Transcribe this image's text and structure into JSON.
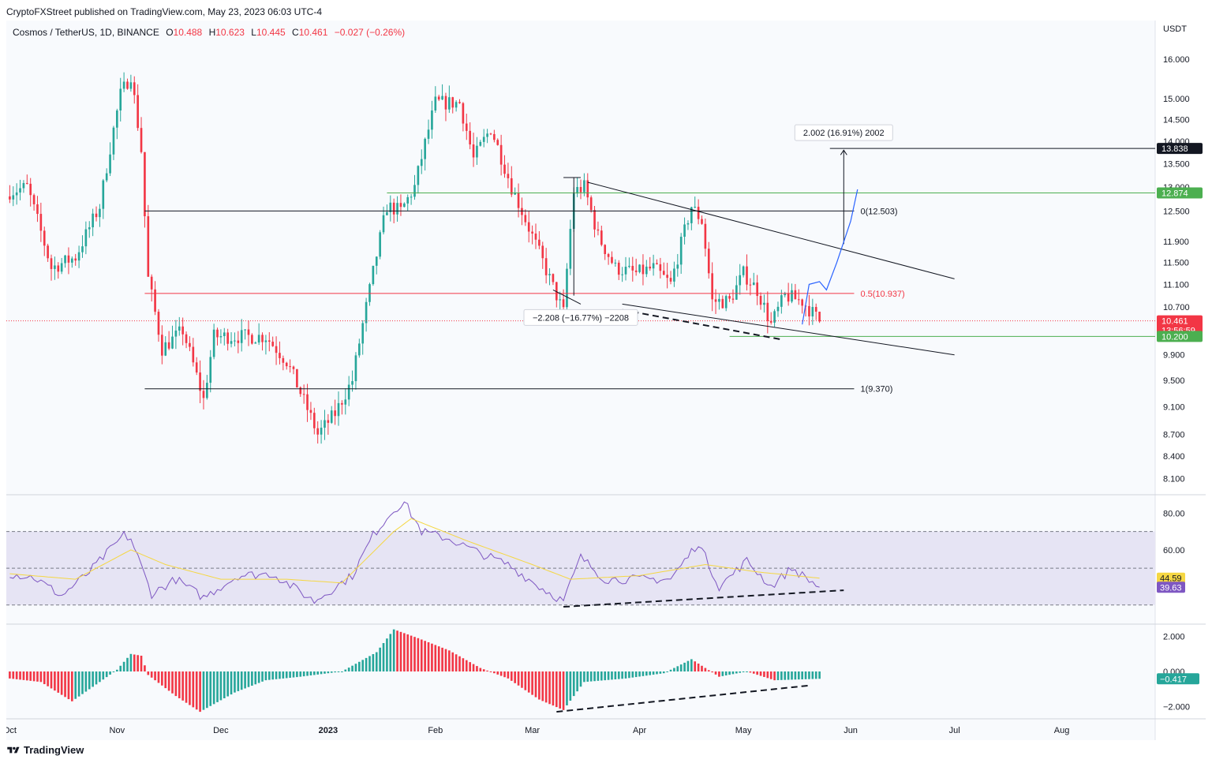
{
  "publisher_text": "CryptoFXStreet published on TradingView.com, May 23, 2023 06:03 UTC-4",
  "symbol": {
    "name": "Cosmos / TetherUS, 1D, BINANCE",
    "o_label": "O",
    "o": "10.488",
    "h_label": "H",
    "h": "10.623",
    "l_label": "L",
    "l": "10.445",
    "c_label": "C",
    "c": "10.461",
    "change": "−0.027 (−0.26%)"
  },
  "currency_label": "USDT",
  "footer_brand": "TradingView",
  "colors": {
    "up": "#26a69a",
    "down": "#f23645",
    "rsi": "#7e57c2",
    "rsi_ma": "#f5d742",
    "fib_mid": "#f23645",
    "green_level": "#4caf50",
    "projection": "#2962ff"
  },
  "chart_data": [
    {
      "type": "candlestick",
      "title": "Cosmos / TetherUS, 1D, BINANCE",
      "y_scale": "log",
      "ylim": [
        7.9,
        16.6
      ],
      "x_range": [
        "2022-09-30",
        "2023-08-28"
      ],
      "x_ticks": [
        {
          "date": "2022-10-01",
          "label": "Oct"
        },
        {
          "date": "2022-11-01",
          "label": "Nov"
        },
        {
          "date": "2022-12-01",
          "label": "Dec"
        },
        {
          "date": "2023-01-01",
          "label": "2023"
        },
        {
          "date": "2023-02-01",
          "label": "Feb"
        },
        {
          "date": "2023-03-01",
          "label": "Mar"
        },
        {
          "date": "2023-04-01",
          "label": "Apr"
        },
        {
          "date": "2023-05-01",
          "label": "May"
        },
        {
          "date": "2023-06-01",
          "label": "Jun"
        },
        {
          "date": "2023-07-01",
          "label": "Jul"
        },
        {
          "date": "2023-08-01",
          "label": "Aug"
        }
      ],
      "y_ticks": [
        "16.000",
        "15.000",
        "14.500",
        "14.000",
        "13.500",
        "13.000",
        "12.500",
        "11.900",
        "11.500",
        "11.100",
        "10.700",
        "9.900",
        "9.500",
        "9.100",
        "8.700",
        "8.400",
        "8.100"
      ],
      "key_points": [
        {
          "date": "2022-10-01",
          "close": 12.9
        },
        {
          "date": "2022-10-06",
          "close": 13.0
        },
        {
          "date": "2022-10-13",
          "close": 11.4
        },
        {
          "date": "2022-10-20",
          "close": 11.6
        },
        {
          "date": "2022-10-27",
          "close": 12.6
        },
        {
          "date": "2022-11-02",
          "close": 15.1
        },
        {
          "date": "2022-11-05",
          "close": 15.6
        },
        {
          "date": "2022-11-08",
          "close": 13.8
        },
        {
          "date": "2022-11-09",
          "close": 12.4
        },
        {
          "date": "2022-11-10",
          "close": 11.2
        },
        {
          "date": "2022-11-14",
          "close": 10.0
        },
        {
          "date": "2022-11-20",
          "close": 10.3
        },
        {
          "date": "2022-11-26",
          "close": 9.2
        },
        {
          "date": "2022-11-29",
          "close": 10.2
        },
        {
          "date": "2022-12-05",
          "close": 10.2
        },
        {
          "date": "2022-12-14",
          "close": 10.2
        },
        {
          "date": "2022-12-20",
          "close": 9.8
        },
        {
          "date": "2022-12-29",
          "close": 8.7
        },
        {
          "date": "2023-01-03",
          "close": 9.0
        },
        {
          "date": "2023-01-08",
          "close": 9.5
        },
        {
          "date": "2023-01-13",
          "close": 11.0
        },
        {
          "date": "2023-01-18",
          "close": 12.6
        },
        {
          "date": "2023-01-22",
          "close": 12.5
        },
        {
          "date": "2023-01-26",
          "close": 13.0
        },
        {
          "date": "2023-02-01",
          "close": 14.9
        },
        {
          "date": "2023-02-08",
          "close": 14.9
        },
        {
          "date": "2023-02-12",
          "close": 13.6
        },
        {
          "date": "2023-02-17",
          "close": 14.3
        },
        {
          "date": "2023-02-23",
          "close": 13.0
        },
        {
          "date": "2023-03-01",
          "close": 12.0
        },
        {
          "date": "2023-03-06",
          "close": 11.2
        },
        {
          "date": "2023-03-10",
          "close": 10.6
        },
        {
          "date": "2023-03-13",
          "close": 12.9
        },
        {
          "date": "2023-03-16",
          "close": 13.0
        },
        {
          "date": "2023-03-20",
          "close": 12.0
        },
        {
          "date": "2023-03-25",
          "close": 11.4
        },
        {
          "date": "2023-03-31",
          "close": 11.3
        },
        {
          "date": "2023-04-05",
          "close": 11.4
        },
        {
          "date": "2023-04-10",
          "close": 11.1
        },
        {
          "date": "2023-04-16",
          "close": 12.6
        },
        {
          "date": "2023-04-19",
          "close": 12.3
        },
        {
          "date": "2023-04-22",
          "close": 10.8
        },
        {
          "date": "2023-04-27",
          "close": 10.8
        },
        {
          "date": "2023-05-01",
          "close": 11.3
        },
        {
          "date": "2023-05-05",
          "close": 11.0
        },
        {
          "date": "2023-05-09",
          "close": 10.4
        },
        {
          "date": "2023-05-13",
          "close": 10.9
        },
        {
          "date": "2023-05-18",
          "close": 10.8
        },
        {
          "date": "2023-05-23",
          "close": 10.461
        }
      ],
      "price_labels": [
        {
          "value": 13.838,
          "label": "13.838",
          "color": "#131722"
        },
        {
          "value": 12.874,
          "label": "12.874",
          "color": "#4caf50"
        },
        {
          "value": 10.461,
          "label": "10.461",
          "sub": "13:56:59",
          "color": "#f23645"
        },
        {
          "value": 10.2,
          "label": "10.200",
          "color": "#4caf50"
        }
      ],
      "fib_levels": [
        {
          "value": 12.503,
          "label": "0(12.503)"
        },
        {
          "value": 10.937,
          "label": "0.5(10.937)"
        },
        {
          "value": 9.37,
          "label": "1(9.370)"
        }
      ],
      "annotations": [
        {
          "text": "2.002 (16.91%) 2002",
          "kind": "measure_up"
        },
        {
          "text": "−2.208 (−16.77%) −2208",
          "kind": "measure_down"
        }
      ]
    },
    {
      "type": "line",
      "title": "RSI",
      "ylim": [
        20,
        90
      ],
      "y_ticks": [
        "80.00",
        "60.00"
      ],
      "bands": [
        70,
        50,
        30
      ],
      "last_values": {
        "rsi": 39.63,
        "rsi_ma": 44.59
      },
      "series": [
        {
          "name": "",
          "key_points": [
            {
              "date": "2022-10-01",
              "value": 47
            },
            {
              "date": "2022-10-08",
              "value": 45
            },
            {
              "date": "2022-10-16",
              "value": 35
            },
            {
              "date": "2022-10-24",
              "value": 48
            },
            {
              "date": "2022-11-03",
              "value": 68
            },
            {
              "date": "2022-11-05",
              "value": 66
            },
            {
              "date": "2022-11-11",
              "value": 36
            },
            {
              "date": "2022-11-18",
              "value": 44
            },
            {
              "date": "2022-11-26",
              "value": 34
            },
            {
              "date": "2022-12-06",
              "value": 46
            },
            {
              "date": "2022-12-16",
              "value": 47
            },
            {
              "date": "2022-12-28",
              "value": 32
            },
            {
              "date": "2023-01-08",
              "value": 46
            },
            {
              "date": "2023-01-14",
              "value": 68
            },
            {
              "date": "2023-01-20",
              "value": 82
            },
            {
              "date": "2023-01-23",
              "value": 86
            },
            {
              "date": "2023-01-28",
              "value": 70
            },
            {
              "date": "2023-02-05",
              "value": 66
            },
            {
              "date": "2023-02-14",
              "value": 58
            },
            {
              "date": "2023-02-22",
              "value": 52
            },
            {
              "date": "2023-03-03",
              "value": 40
            },
            {
              "date": "2023-03-10",
              "value": 32
            },
            {
              "date": "2023-03-15",
              "value": 56
            },
            {
              "date": "2023-03-22",
              "value": 44
            },
            {
              "date": "2023-04-02",
              "value": 44
            },
            {
              "date": "2023-04-10",
              "value": 44
            },
            {
              "date": "2023-04-18",
              "value": 64
            },
            {
              "date": "2023-04-24",
              "value": 40
            },
            {
              "date": "2023-05-02",
              "value": 54
            },
            {
              "date": "2023-05-09",
              "value": 40
            },
            {
              "date": "2023-05-15",
              "value": 50
            },
            {
              "date": "2023-05-23",
              "value": 39.63
            }
          ]
        },
        {
          "name": "",
          "key_points": [
            {
              "date": "2022-10-01",
              "value": 47
            },
            {
              "date": "2022-10-20",
              "value": 44
            },
            {
              "date": "2022-11-05",
              "value": 60
            },
            {
              "date": "2022-11-15",
              "value": 52
            },
            {
              "date": "2022-12-01",
              "value": 44
            },
            {
              "date": "2022-12-20",
              "value": 44
            },
            {
              "date": "2023-01-05",
              "value": 42
            },
            {
              "date": "2023-01-20",
              "value": 70
            },
            {
              "date": "2023-01-25",
              "value": 77
            },
            {
              "date": "2023-02-10",
              "value": 65
            },
            {
              "date": "2023-03-01",
              "value": 52
            },
            {
              "date": "2023-03-12",
              "value": 44
            },
            {
              "date": "2023-04-01",
              "value": 46
            },
            {
              "date": "2023-04-20",
              "value": 52
            },
            {
              "date": "2023-05-05",
              "value": 48
            },
            {
              "date": "2023-05-23",
              "value": 44.59
            }
          ]
        }
      ]
    },
    {
      "type": "bar",
      "title": "Histogram",
      "ylim": [
        -2.7,
        2.7
      ],
      "y_ticks": [
        "2.000",
        "0.000",
        "−2.000"
      ],
      "last_value": "−0.417",
      "key_points": [
        {
          "date": "2022-10-01",
          "value": -0.4
        },
        {
          "date": "2022-10-10",
          "value": -0.6
        },
        {
          "date": "2022-10-19",
          "value": -1.7
        },
        {
          "date": "2022-10-27",
          "value": -0.6
        },
        {
          "date": "2022-11-01",
          "value": 0.1
        },
        {
          "date": "2022-11-05",
          "value": 1.0
        },
        {
          "date": "2022-11-08",
          "value": 0.9
        },
        {
          "date": "2022-11-10",
          "value": -0.2
        },
        {
          "date": "2022-11-18",
          "value": -1.4
        },
        {
          "date": "2022-11-25",
          "value": -2.3
        },
        {
          "date": "2022-12-05",
          "value": -1.2
        },
        {
          "date": "2022-12-14",
          "value": -0.5
        },
        {
          "date": "2022-12-24",
          "value": -0.3
        },
        {
          "date": "2023-01-05",
          "value": 0.0
        },
        {
          "date": "2023-01-15",
          "value": 1.1
        },
        {
          "date": "2023-01-20",
          "value": 2.4
        },
        {
          "date": "2023-01-27",
          "value": 1.9
        },
        {
          "date": "2023-02-05",
          "value": 1.2
        },
        {
          "date": "2023-02-14",
          "value": 0.2
        },
        {
          "date": "2023-02-22",
          "value": -0.4
        },
        {
          "date": "2023-03-03",
          "value": -1.6
        },
        {
          "date": "2023-03-10",
          "value": -2.2
        },
        {
          "date": "2023-03-16",
          "value": -0.6
        },
        {
          "date": "2023-03-28",
          "value": -0.4
        },
        {
          "date": "2023-04-08",
          "value": -0.1
        },
        {
          "date": "2023-04-16",
          "value": 0.7
        },
        {
          "date": "2023-04-24",
          "value": -0.3
        },
        {
          "date": "2023-05-02",
          "value": 0.0
        },
        {
          "date": "2023-05-10",
          "value": -0.5
        },
        {
          "date": "2023-05-23",
          "value": -0.417
        }
      ]
    }
  ]
}
